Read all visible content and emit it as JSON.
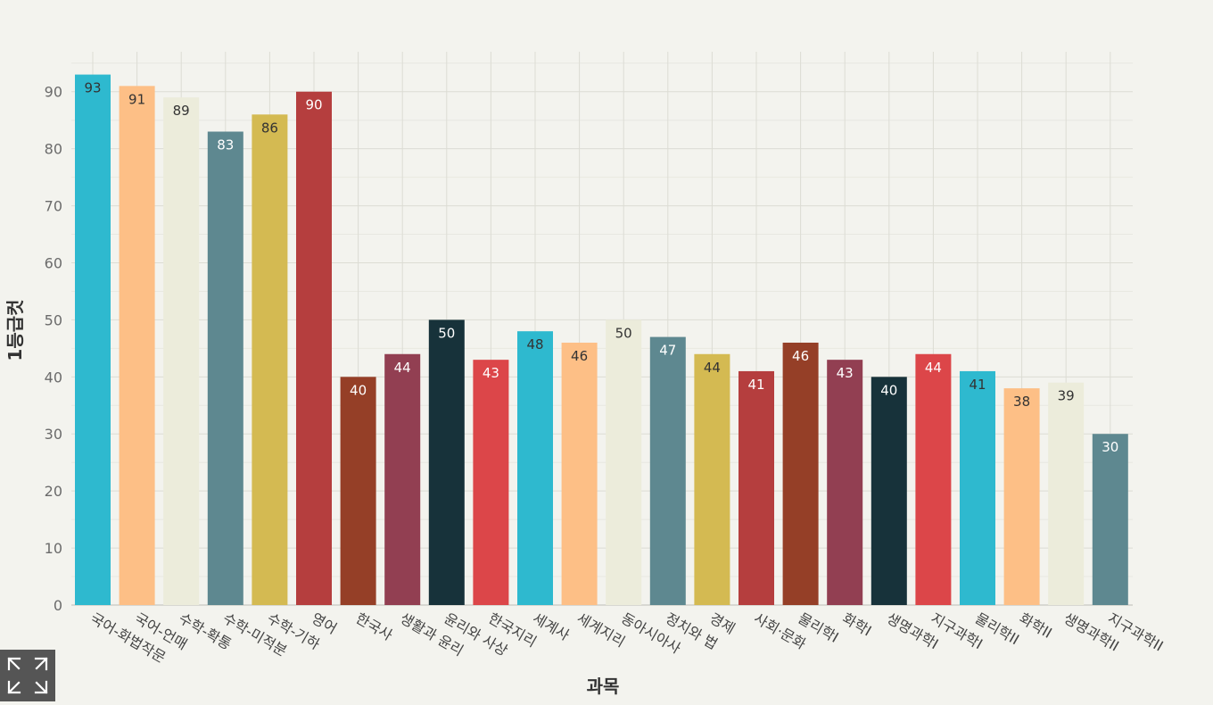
{
  "chart_data": {
    "type": "bar",
    "title": "",
    "xlabel": "과목",
    "ylabel": "1등급컷",
    "ylim": [
      0,
      97
    ],
    "yticks": [
      0,
      10,
      20,
      30,
      40,
      50,
      60,
      70,
      80,
      90
    ],
    "grid": true,
    "categories": [
      "국어-화법작문",
      "국어-언매",
      "수학-확통",
      "수학-미적분",
      "수학-기하",
      "영어",
      "한국사",
      "생활과 윤리",
      "윤리와 사상",
      "한국지리",
      "세계사",
      "세계지리",
      "동아시아사",
      "정치와 법",
      "경제",
      "사회·문화",
      "물리학I",
      "화학I",
      "생명과학I",
      "지구과학I",
      "물리학II",
      "화학II",
      "생명과학II",
      "지구과학II"
    ],
    "values": [
      93,
      91,
      89,
      83,
      86,
      90,
      40,
      44,
      50,
      43,
      48,
      46,
      50,
      47,
      44,
      41,
      46,
      43,
      40,
      44,
      41,
      38,
      39,
      30
    ],
    "colors": [
      "#2eb9cf",
      "#fdbf86",
      "#ececdb",
      "#5e8890",
      "#d4ba52",
      "#b53e3e",
      "#953f27",
      "#923f52",
      "#17323a",
      "#dc4649"
    ],
    "label_colors": [
      "#333333",
      "#333333",
      "#333333",
      "#ffffff",
      "#333333",
      "#ffffff",
      "#ffffff",
      "#ffffff",
      "#ffffff",
      "#ffffff"
    ]
  },
  "controls": {
    "expand_icon": "expand-icon"
  }
}
